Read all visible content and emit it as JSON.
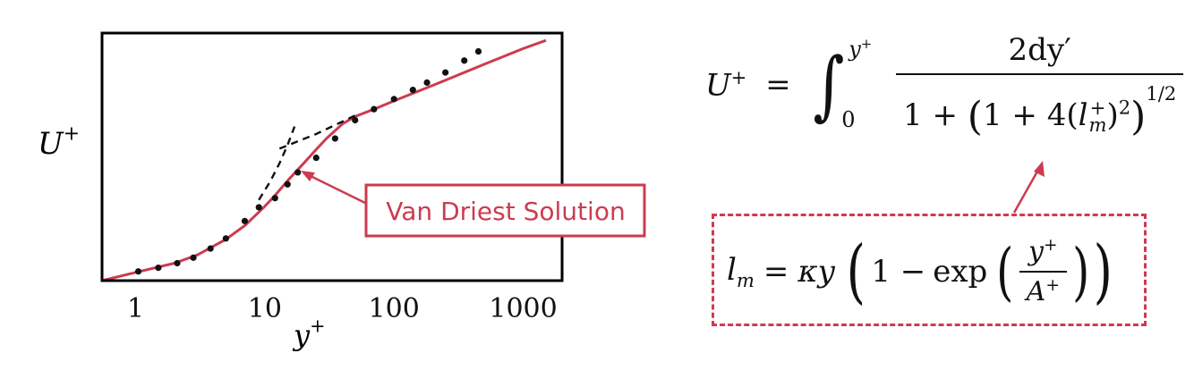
{
  "chart_data": {
    "type": "line",
    "title": "",
    "xlabel": "y+",
    "ylabel": "U+",
    "xscale": "log",
    "xlim": [
      0.55,
      2000
    ],
    "ylim": [
      0,
      27
    ],
    "x_ticks": [
      "1",
      "10",
      "100",
      "1000"
    ],
    "x_tick_values": [
      1,
      10,
      100,
      1000
    ],
    "grid": false,
    "series": [
      {
        "name": "Van Driest Solution",
        "style": "solid",
        "color": "#cc3b50",
        "x": [
          0.55,
          1,
          2,
          3,
          5,
          7,
          10,
          12,
          15,
          20,
          25,
          30,
          40,
          50,
          70,
          100,
          200,
          500,
          1000,
          1500
        ],
        "y": [
          0.0,
          0.9,
          1.9,
          2.8,
          4.5,
          6.0,
          8.1,
          9.3,
          10.9,
          12.8,
          14.3,
          15.5,
          17.1,
          17.9,
          18.7,
          19.6,
          21.3,
          23.6,
          25.3,
          26.2
        ]
      },
      {
        "name": "",
        "style": "dashed",
        "color": "#111111",
        "x": [
          9,
          11,
          13,
          15,
          17
        ],
        "y": [
          8.8,
          10.8,
          12.8,
          14.8,
          16.8
        ]
      },
      {
        "name": "",
        "style": "dashed",
        "color": "#111111",
        "x": [
          13,
          25,
          50
        ],
        "y": [
          14.4,
          16.0,
          18.0
        ]
      },
      {
        "name": "",
        "style": "markers",
        "color": "#111111",
        "x": [
          1.05,
          1.5,
          2.1,
          2.8,
          3.8,
          5,
          7,
          9,
          12,
          15,
          18,
          25,
          35,
          50,
          70,
          100,
          140,
          180,
          250,
          350,
          450
        ],
        "y": [
          1.0,
          1.4,
          1.9,
          2.5,
          3.5,
          4.6,
          6.5,
          8.0,
          9.0,
          10.5,
          11.8,
          13.4,
          15.5,
          17.5,
          18.7,
          19.8,
          20.8,
          21.6,
          22.7,
          24.0,
          25.0
        ]
      }
    ],
    "annotations": [
      {
        "text": "Van Driest Solution",
        "color": "#cc3b50"
      }
    ]
  },
  "equations": {
    "eq1": {
      "lhs": "U",
      "lhs_sup": "+",
      "equals": "=",
      "int_upper_var": "y",
      "int_upper_sup": "+",
      "int_lower": "0",
      "numerator": "2dy′",
      "den_one": "1 +",
      "den_inner": "1 + 4(",
      "den_l": "l",
      "den_l_sup": "+",
      "den_l_sub": "m",
      "den_close": ")",
      "den_sq": "2",
      "den_power": "1/2"
    },
    "eq2": {
      "lhs": "l",
      "lhs_sub": "m",
      "equals": "=",
      "kappa_y": "κy",
      "one_minus": "1 −",
      "exp": "exp",
      "frac_num_var": "y",
      "frac_num_sup": "+",
      "frac_den_var": "A",
      "frac_den_sup": "+"
    }
  },
  "colors": {
    "accent": "#cc3b50",
    "ink": "#111111"
  }
}
